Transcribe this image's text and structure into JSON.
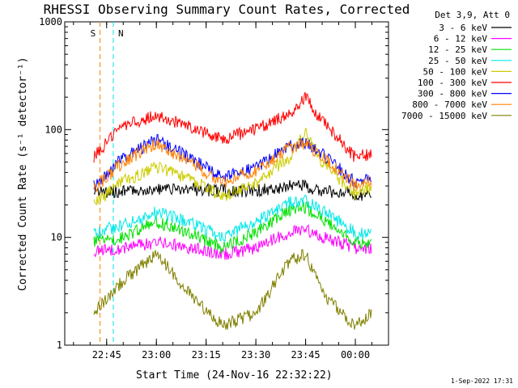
{
  "chart_data": {
    "type": "line",
    "title": "RHESSI Observing Summary Count Rates, Corrected",
    "xlabel": "Start Time (24-Nov-16 22:32:22)",
    "ylabel": "Corrected Count Rate (s⁻¹ detector⁻¹)",
    "y_scale": "log",
    "ylim": [
      1,
      1000
    ],
    "xlim": [
      "22:32:22",
      "00:10:00"
    ],
    "y_ticks": [
      "1",
      "10",
      "100",
      "1000"
    ],
    "x_ticks": [
      "22:45",
      "23:00",
      "23:15",
      "23:30",
      "23:45",
      "00:00"
    ],
    "legend_header": "Det 3,9, Att 0",
    "legend_position": "right",
    "series": [
      {
        "name": "3 - 6 keV",
        "color": "#000000",
        "x": [
          "22:41",
          "22:50",
          "23:00",
          "23:10",
          "23:20",
          "23:30",
          "23:40",
          "23:45",
          "23:50",
          "24:00",
          "24:05"
        ],
        "values": [
          26,
          27,
          28,
          28,
          27,
          27,
          30,
          30,
          27,
          25,
          25
        ]
      },
      {
        "name": "6 - 12 keV",
        "color": "#ff00ff",
        "x": [
          "22:41",
          "22:50",
          "23:00",
          "23:10",
          "23:20",
          "23:30",
          "23:40",
          "23:45",
          "23:50",
          "24:00",
          "24:05"
        ],
        "values": [
          7.5,
          8,
          9,
          8,
          7,
          8,
          11,
          12,
          10,
          8,
          8
        ]
      },
      {
        "name": "12 - 25 keV",
        "color": "#00e000",
        "x": [
          "22:41",
          "22:50",
          "23:00",
          "23:10",
          "23:20",
          "23:30",
          "23:40",
          "23:45",
          "23:50",
          "24:00",
          "24:05"
        ],
        "values": [
          9,
          10,
          14,
          11,
          8,
          11,
          18,
          19,
          15,
          9,
          9
        ]
      },
      {
        "name": "25 - 50 keV",
        "color": "#00e8e8",
        "x": [
          "22:41",
          "22:50",
          "23:00",
          "23:10",
          "23:20",
          "23:30",
          "23:40",
          "23:45",
          "23:50",
          "24:00",
          "24:05"
        ],
        "values": [
          11,
          13,
          17,
          14,
          10,
          14,
          21,
          22,
          18,
          11,
          11
        ]
      },
      {
        "name": "50 - 100 keV",
        "color": "#cccc00",
        "x": [
          "22:41",
          "22:50",
          "23:00",
          "23:10",
          "23:20",
          "23:30",
          "23:40",
          "23:45",
          "23:50",
          "24:00",
          "24:05"
        ],
        "values": [
          20,
          33,
          45,
          35,
          24,
          32,
          55,
          95,
          50,
          25,
          30
        ]
      },
      {
        "name": "100 - 300 keV",
        "color": "#ff0000",
        "x": [
          "22:41",
          "22:50",
          "23:00",
          "23:10",
          "23:20",
          "23:30",
          "23:40",
          "23:45",
          "23:50",
          "24:00",
          "24:05"
        ],
        "values": [
          55,
          110,
          135,
          105,
          82,
          100,
          140,
          200,
          120,
          55,
          60
        ]
      },
      {
        "name": "300 - 800 keV",
        "color": "#0000ff",
        "x": [
          "22:41",
          "22:50",
          "23:00",
          "23:10",
          "23:20",
          "23:30",
          "23:40",
          "23:45",
          "23:50",
          "24:00",
          "24:05"
        ],
        "values": [
          30,
          55,
          80,
          55,
          35,
          45,
          70,
          75,
          60,
          32,
          38
        ]
      },
      {
        "name": "800 - 7000 keV",
        "color": "#ff8000",
        "x": [
          "22:41",
          "22:50",
          "23:00",
          "23:10",
          "23:20",
          "23:30",
          "23:40",
          "23:45",
          "23:50",
          "24:00",
          "24:05"
        ],
        "values": [
          28,
          50,
          75,
          50,
          32,
          42,
          68,
          72,
          58,
          30,
          35
        ]
      },
      {
        "name": "7000 - 15000 keV",
        "color": "#808000",
        "x": [
          "22:41",
          "22:50",
          "23:00",
          "23:10",
          "23:20",
          "23:30",
          "23:40",
          "23:45",
          "23:50",
          "24:00",
          "24:05"
        ],
        "values": [
          2,
          4,
          7,
          3,
          1.5,
          2,
          6,
          7,
          3,
          1.5,
          2
        ]
      }
    ],
    "flags": [
      {
        "label": "S",
        "color": "#ff8000",
        "x": "22:43"
      },
      {
        "label": "N",
        "color": "#00e8e8",
        "x": "22:47"
      }
    ],
    "timestamp": "1-Sep-2022 17:31"
  }
}
